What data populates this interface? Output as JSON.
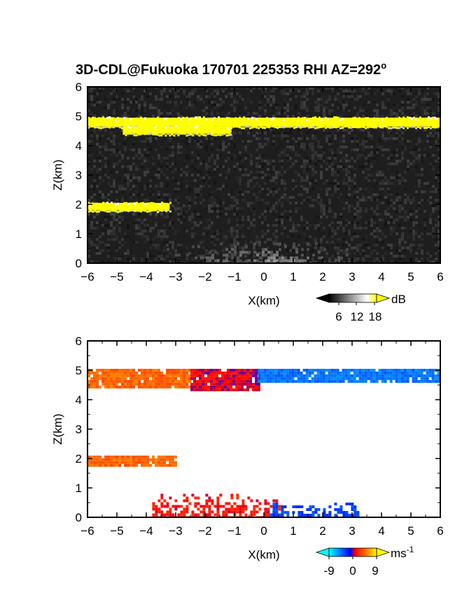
{
  "title": "3D-CDL@Fukuoka 170701 225353 RHI AZ=292",
  "title_degree": "o",
  "chart_data": [
    {
      "type": "heatmap",
      "panel": "signal",
      "xlabel": "X(km)",
      "ylabel": "Z(km)",
      "xlim": [
        -6,
        6
      ],
      "ylim": [
        0,
        6
      ],
      "xticks": [
        "-6",
        "-5",
        "-4",
        "-3",
        "-2",
        "-1",
        "0",
        "1",
        "2",
        "3",
        "4",
        "5",
        "6"
      ],
      "yticks": [
        "0",
        "1",
        "2",
        "3",
        "4",
        "5",
        "6"
      ],
      "colorbar": {
        "unit": "dB",
        "ticks": [
          "6",
          "12",
          "18"
        ],
        "range": [
          0,
          20
        ],
        "colors": [
          "#000000",
          "#ffffff",
          "#ffff00"
        ]
      },
      "background": "#1e1e1e",
      "layers": [
        {
          "name": "upper cloud layer",
          "x": [
            -6,
            6
          ],
          "z": [
            4.65,
            4.95
          ],
          "value_db": 20
        },
        {
          "name": "upper cloud lower part",
          "x": [
            -4.8,
            -1.1
          ],
          "z": [
            4.4,
            4.65
          ],
          "value_db": 20
        },
        {
          "name": "lower cloud layer",
          "x": [
            -6,
            -3.2
          ],
          "z": [
            1.8,
            2.05
          ],
          "value_db": 20
        },
        {
          "name": "boundary layer aerosol",
          "x": [
            -3.5,
            3.5
          ],
          "z": [
            0,
            0.8
          ],
          "value_db": 9
        }
      ]
    },
    {
      "type": "heatmap",
      "panel": "doppler velocity",
      "xlabel": "X(km)",
      "ylabel": "Z(km)",
      "xlim": [
        -6,
        6
      ],
      "ylim": [
        0,
        6
      ],
      "xticks": [
        "-6",
        "-5",
        "-4",
        "-3",
        "-2",
        "-1",
        "0",
        "1",
        "2",
        "3",
        "4",
        "5",
        "6"
      ],
      "yticks": [
        "0",
        "1",
        "2",
        "3",
        "4",
        "5",
        "6"
      ],
      "colorbar": {
        "unit": "ms",
        "unit_exp": "-1",
        "ticks": [
          "-9",
          "0",
          "9"
        ],
        "range": [
          -12,
          12
        ],
        "colors": [
          "#00ffff",
          "#0000ff",
          "#ff0000",
          "#ffff00"
        ]
      },
      "regions": [
        {
          "name": "upper layer west",
          "x": [
            -6,
            -2.5
          ],
          "z": [
            4.45,
            5.05
          ],
          "velocity": 6
        },
        {
          "name": "upper layer middle",
          "x": [
            -2.5,
            -0.2
          ],
          "z": [
            4.35,
            5.05
          ],
          "velocity": 1
        },
        {
          "name": "upper layer east",
          "x": [
            -0.2,
            6
          ],
          "z": [
            4.6,
            5.05
          ],
          "velocity": -6
        },
        {
          "name": "lower cloud layer",
          "x": [
            -6,
            -3
          ],
          "z": [
            1.8,
            2.1
          ],
          "velocity": 6
        },
        {
          "name": "boundary layer west",
          "x": [
            -3.8,
            0.5
          ],
          "z": [
            0,
            0.8
          ],
          "velocity": 2
        },
        {
          "name": "boundary layer east",
          "x": [
            0.2,
            3.2
          ],
          "z": [
            0,
            0.5
          ],
          "velocity": -4
        }
      ]
    }
  ]
}
